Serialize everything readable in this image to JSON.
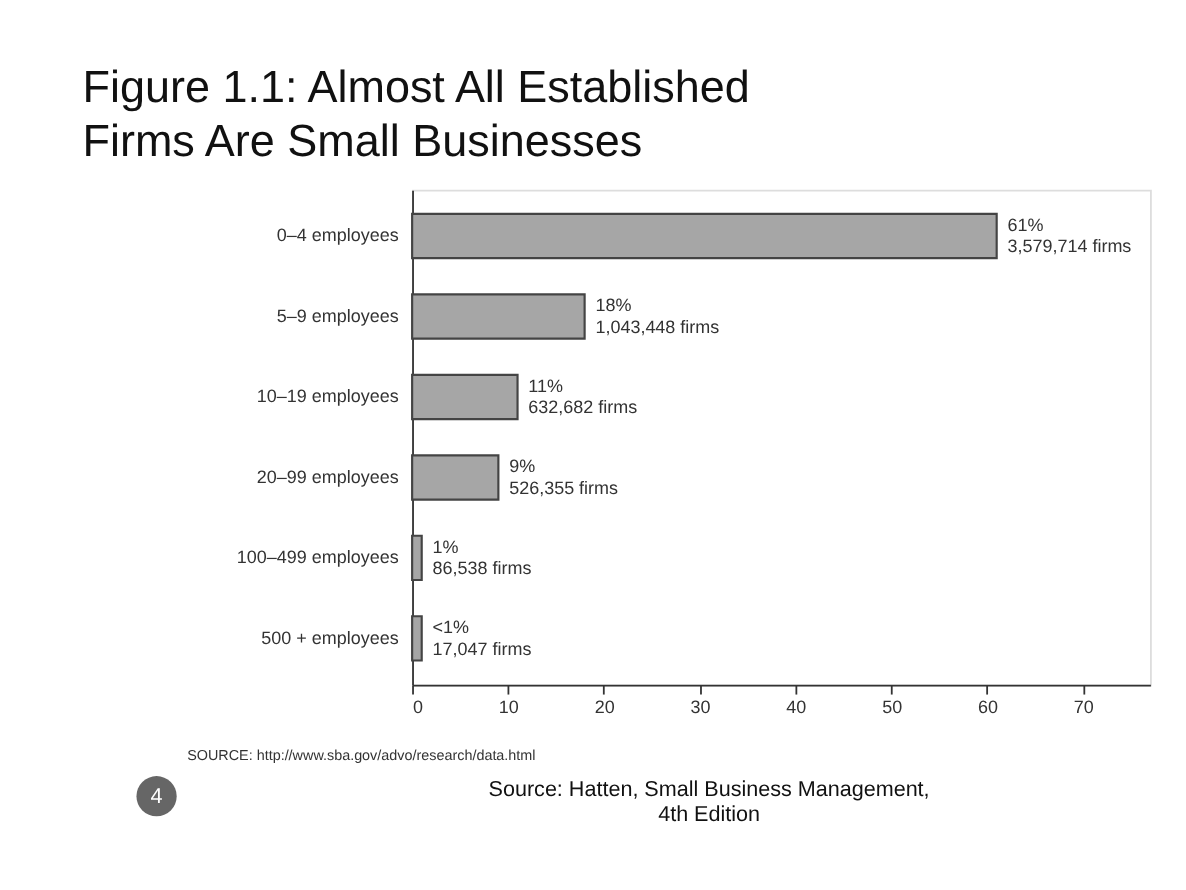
{
  "chart_data": {
    "type": "bar",
    "orientation": "horizontal",
    "title": "Figure 1.1: Almost All Established Firms Are Small Businesses",
    "categories": [
      "0–4 employees",
      "5–9 employees",
      "10–19 employees",
      "20–99 employees",
      "100–499 employees",
      "500 + employees"
    ],
    "values": [
      61,
      18,
      11,
      9,
      1,
      1
    ],
    "value_labels": [
      "61%\n3,579,714 firms",
      "18%\n1,043,448 firms",
      "11%\n632,682 firms",
      "9%\n526,355 firms",
      "1%\n86,538 firms",
      "<1%\n17,047 firms"
    ],
    "color": "#a6a6a6",
    "xlim": [
      0,
      77
    ],
    "xticks": [
      0,
      10,
      20,
      30,
      40,
      50,
      60,
      70
    ],
    "grid": false,
    "annotations": [
      "SOURCE: http://www.sba.gov/advo/research/data.html",
      "Source: Hatten, Small Business Management,\n4th Edition",
      "4"
    ]
  }
}
